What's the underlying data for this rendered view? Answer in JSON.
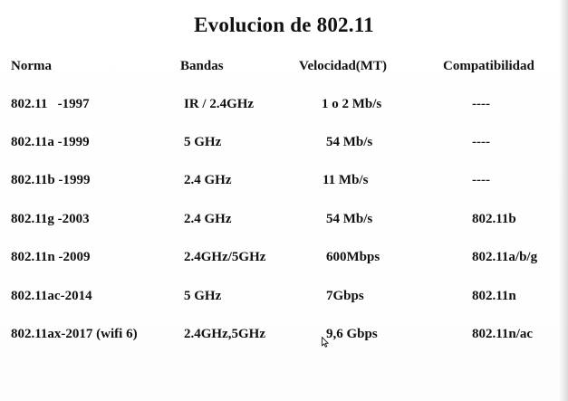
{
  "title": "Evolucion de 802.11",
  "headers": [
    "Norma",
    "Bandas",
    "Velocidad(MT)",
    "Compatibilidad"
  ],
  "rows": [
    [
      "802.11   -1997",
      "IR / 2.4GHz",
      "1 o 2 Mb/s",
      "----"
    ],
    [
      "802.11a -1999",
      "5 GHz",
      "54 Mb/s",
      "----"
    ],
    [
      "802.11b -1999",
      "2.4 GHz",
      "11 Mb/s",
      "----"
    ],
    [
      "802.11g -2003",
      "2.4 GHz",
      "54 Mb/s",
      "802.11b"
    ],
    [
      "802.11n -2009",
      "2.4GHz/5GHz",
      "600Mbps",
      "802.11a/b/g"
    ],
    [
      "802.11ac-2014",
      "5 GHz",
      "7Gbps",
      "802.11n"
    ],
    [
      "802.11ax-2017 (wifi 6)",
      "2.4GHz,5GHz",
      "9,6 Gbps",
      "802.11n/ac"
    ]
  ]
}
